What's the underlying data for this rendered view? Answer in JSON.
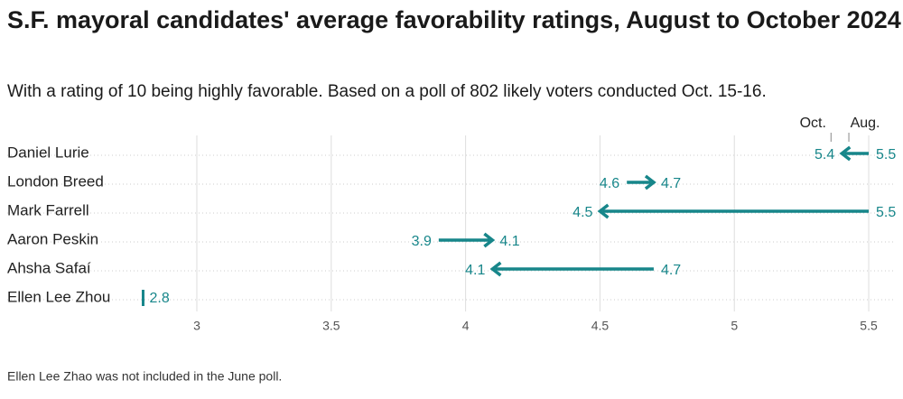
{
  "chart_data": {
    "type": "arrow",
    "title": "S.F. mayoral candidates' average favorability ratings, August to October 2024",
    "subtitle": "With a rating of 10 being highly favorable. Based on a poll of 802 likely voters conducted Oct. 15-16.",
    "note": "Ellen Lee Zhao was not included in the June poll.",
    "categories": [
      "Daniel Lurie",
      "London Breed",
      "Mark Farrell",
      "Aaron Peskin",
      "Ahsha Safaí",
      "Ellen Lee Zhou"
    ],
    "series": [
      {
        "name": "Oct.",
        "color": "#17868a",
        "values": [
          5.4,
          4.7,
          4.5,
          4.1,
          4.1,
          2.8
        ]
      },
      {
        "name": "Aug.",
        "color": "#17868a",
        "values": [
          5.5,
          4.6,
          5.5,
          3.9,
          4.7,
          null
        ]
      }
    ],
    "xlim": [
      2.75,
      5.6
    ],
    "xticks": [
      3,
      3.5,
      4,
      4.5,
      5,
      5.5
    ],
    "grid": true
  }
}
